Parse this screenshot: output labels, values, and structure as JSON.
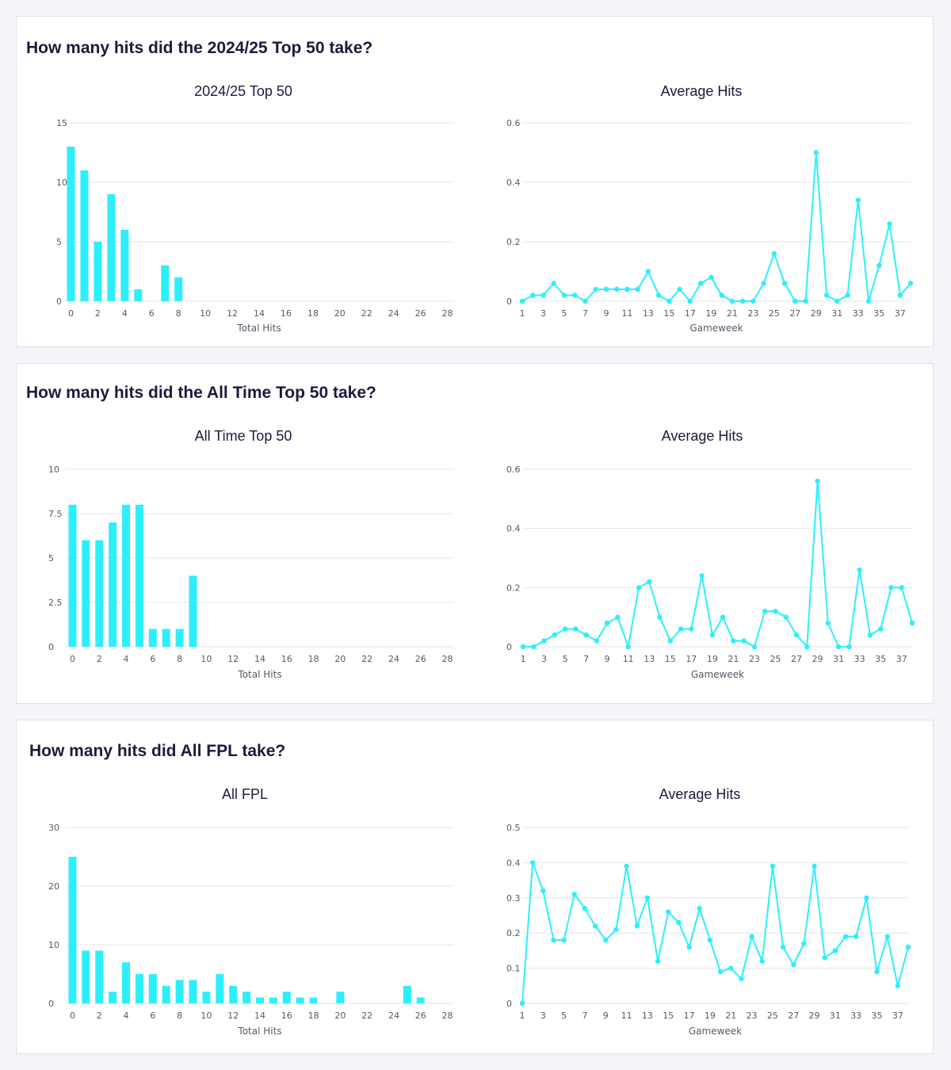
{
  "colors": {
    "accent": "#2deffc",
    "grid": "#e3e6ec",
    "title": "#1e1a3c",
    "tick": "#555a66"
  },
  "sections": [
    {
      "title": "How many hits did the 2024/25 Top 50 take?"
    },
    {
      "title": "How many hits did the All Time Top 50 take?"
    },
    {
      "title": "How many hits did All FPL take?"
    }
  ],
  "chart_data": [
    {
      "type": "bar",
      "title": "2024/25 Top 50",
      "xlabel": "Total Hits",
      "ylabel": "",
      "ylim": [
        0,
        15
      ],
      "yticks": [
        "0",
        "5",
        "10",
        "15"
      ],
      "ytick_values": [
        0,
        5,
        10,
        15
      ],
      "xlim": [
        0,
        29
      ],
      "xtick_values": [
        0,
        2,
        4,
        6,
        8,
        10,
        12,
        14,
        16,
        18,
        20,
        22,
        24,
        26,
        28
      ],
      "x": [
        0,
        1,
        2,
        3,
        4,
        5,
        7,
        8
      ],
      "values": [
        13,
        11,
        5,
        9,
        6,
        1,
        3,
        2
      ],
      "grid": true
    },
    {
      "type": "line",
      "title": "Average Hits",
      "xlabel": "Gameweek",
      "ylabel": "",
      "ylim": [
        0,
        0.6
      ],
      "yticks": [
        "0",
        "0.2",
        "0.4",
        "0.6"
      ],
      "ytick_values": [
        0,
        0.2,
        0.4,
        0.6
      ],
      "xlim": [
        1,
        38
      ],
      "xtick_values": [
        1,
        3,
        5,
        7,
        9,
        11,
        13,
        15,
        17,
        19,
        21,
        23,
        25,
        27,
        29,
        31,
        33,
        35,
        37
      ],
      "x": [
        1,
        2,
        3,
        4,
        5,
        6,
        7,
        8,
        9,
        10,
        11,
        12,
        13,
        14,
        15,
        16,
        17,
        18,
        19,
        20,
        21,
        22,
        23,
        24,
        25,
        26,
        27,
        28,
        29,
        30,
        31,
        32,
        33,
        34,
        35,
        36,
        37,
        38
      ],
      "values": [
        0,
        0.02,
        0.02,
        0.06,
        0.02,
        0.02,
        0,
        0.04,
        0.04,
        0.04,
        0.04,
        0.04,
        0.1,
        0.02,
        0,
        0.04,
        0,
        0.06,
        0.08,
        0.02,
        0,
        0,
        0,
        0.06,
        0.16,
        0.06,
        0,
        0,
        0.5,
        0.02,
        0,
        0.02,
        0.34,
        0,
        0.12,
        0.26,
        0.02,
        0.06
      ],
      "grid": true
    },
    {
      "type": "bar",
      "title": "All Time Top 50",
      "xlabel": "Total Hits",
      "ylabel": "",
      "ylim": [
        0,
        10
      ],
      "yticks": [
        "0",
        "2.5",
        "5",
        "7.5",
        "10"
      ],
      "ytick_values": [
        0,
        2.5,
        5,
        7.5,
        10
      ],
      "xlim": [
        0,
        29
      ],
      "xtick_values": [
        0,
        2,
        4,
        6,
        8,
        10,
        12,
        14,
        16,
        18,
        20,
        22,
        24,
        26,
        28
      ],
      "x": [
        0,
        1,
        2,
        3,
        4,
        5,
        6,
        7,
        8,
        9
      ],
      "values": [
        8,
        6,
        6,
        7,
        8,
        8,
        1,
        1,
        1,
        4
      ],
      "grid": true
    },
    {
      "type": "line",
      "title": "Average Hits",
      "xlabel": "Gameweek",
      "ylabel": "",
      "ylim": [
        0,
        0.6
      ],
      "yticks": [
        "0",
        "0.2",
        "0.4",
        "0.6"
      ],
      "ytick_values": [
        0,
        0.2,
        0.4,
        0.6
      ],
      "xlim": [
        1,
        38
      ],
      "xtick_values": [
        1,
        3,
        5,
        7,
        9,
        11,
        13,
        15,
        17,
        19,
        21,
        23,
        25,
        27,
        29,
        31,
        33,
        35,
        37
      ],
      "x": [
        1,
        2,
        3,
        4,
        5,
        6,
        7,
        8,
        9,
        10,
        11,
        12,
        13,
        14,
        15,
        16,
        17,
        18,
        19,
        20,
        21,
        22,
        23,
        24,
        25,
        26,
        27,
        28,
        29,
        30,
        31,
        32,
        33,
        34,
        35,
        36,
        37,
        38
      ],
      "values": [
        0,
        0,
        0.02,
        0.04,
        0.06,
        0.06,
        0.04,
        0.02,
        0.08,
        0.1,
        0,
        0.2,
        0.22,
        0.1,
        0.02,
        0.06,
        0.06,
        0.24,
        0.04,
        0.1,
        0.02,
        0.02,
        0,
        0.12,
        0.12,
        0.1,
        0.04,
        0,
        0.56,
        0.08,
        0,
        0,
        0.26,
        0.04,
        0.06,
        0.2,
        0.2,
        0.08
      ],
      "grid": true
    },
    {
      "type": "bar",
      "title": "All FPL",
      "xlabel": "Total Hits",
      "ylabel": "",
      "ylim": [
        0,
        30
      ],
      "yticks": [
        "0",
        "10",
        "20",
        "30"
      ],
      "ytick_values": [
        0,
        10,
        20,
        30
      ],
      "xlim": [
        0,
        29
      ],
      "xtick_values": [
        0,
        2,
        4,
        6,
        8,
        10,
        12,
        14,
        16,
        18,
        20,
        22,
        24,
        26,
        28
      ],
      "x": [
        0,
        1,
        2,
        3,
        4,
        5,
        6,
        7,
        8,
        9,
        10,
        11,
        12,
        13,
        14,
        15,
        16,
        17,
        18,
        20,
        25,
        26
      ],
      "values": [
        25,
        9,
        9,
        2,
        7,
        5,
        5,
        3,
        4,
        4,
        2,
        5,
        3,
        2,
        1,
        1,
        2,
        1,
        1,
        2,
        3,
        1
      ],
      "grid": true
    },
    {
      "type": "line",
      "title": "Average Hits",
      "xlabel": "Gameweek",
      "ylabel": "",
      "ylim": [
        0,
        0.5
      ],
      "yticks": [
        "0",
        "0.1",
        "0.2",
        "0.3",
        "0.4",
        "0.5"
      ],
      "ytick_values": [
        0,
        0.1,
        0.2,
        0.3,
        0.4,
        0.5
      ],
      "xlim": [
        1,
        38
      ],
      "xtick_values": [
        1,
        3,
        5,
        7,
        9,
        11,
        13,
        15,
        17,
        19,
        21,
        23,
        25,
        27,
        29,
        31,
        33,
        35,
        37
      ],
      "x": [
        1,
        2,
        3,
        4,
        5,
        6,
        7,
        8,
        9,
        10,
        11,
        12,
        13,
        14,
        15,
        16,
        17,
        18,
        19,
        20,
        21,
        22,
        23,
        24,
        25,
        26,
        27,
        28,
        29,
        30,
        31,
        32,
        33,
        34,
        35,
        36,
        37,
        38
      ],
      "values": [
        0,
        0.4,
        0.32,
        0.18,
        0.18,
        0.31,
        0.27,
        0.22,
        0.18,
        0.21,
        0.39,
        0.22,
        0.3,
        0.12,
        0.26,
        0.23,
        0.16,
        0.27,
        0.18,
        0.09,
        0.1,
        0.07,
        0.19,
        0.12,
        0.39,
        0.16,
        0.11,
        0.17,
        0.39,
        0.13,
        0.15,
        0.19,
        0.19,
        0.3,
        0.09,
        0.19,
        0.05,
        0.16
      ],
      "grid": true
    }
  ]
}
